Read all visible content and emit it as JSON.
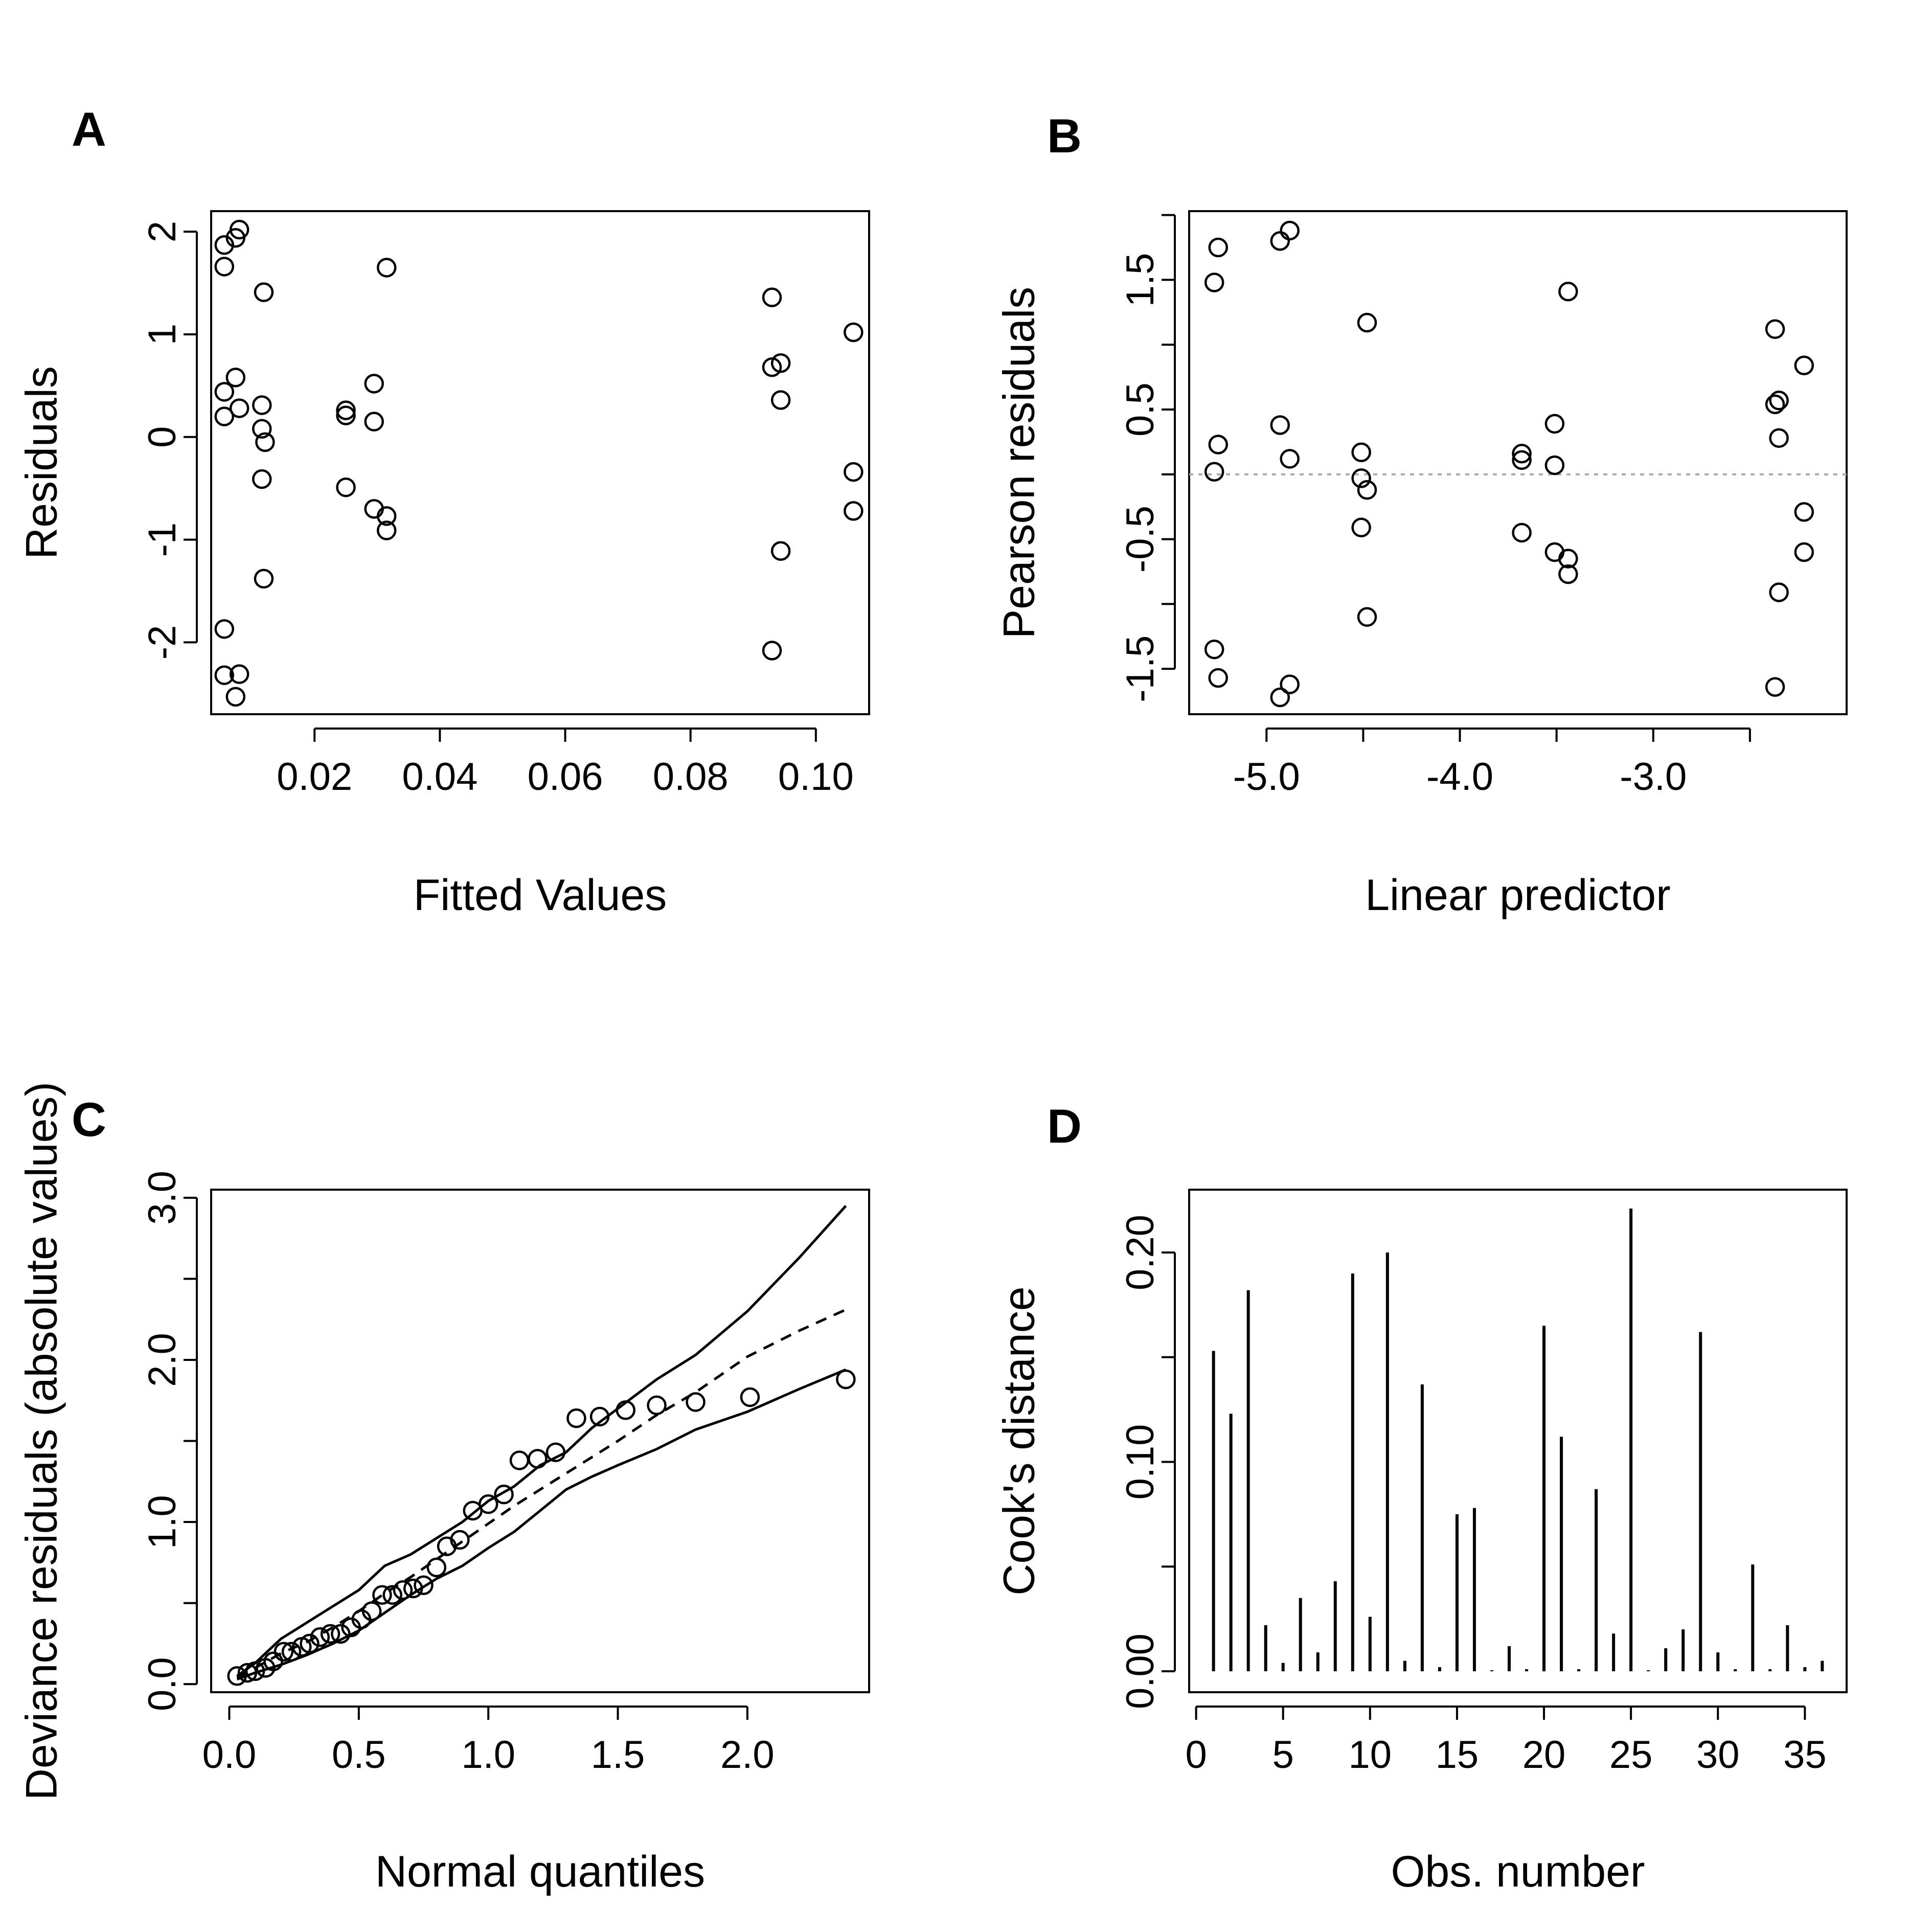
{
  "chart_data": [
    {
      "panel": "A",
      "type": "scatter",
      "xlabel": "Fitted Values",
      "ylabel": "Residuals",
      "xlim": [
        0.0035,
        0.1085
      ],
      "ylim": [
        -2.7,
        2.2
      ],
      "xticks": [
        0.02,
        0.04,
        0.06,
        0.08,
        0.1
      ],
      "xtick_labels": [
        "0.02",
        "0.04",
        "0.06",
        "0.08",
        "0.10"
      ],
      "yticks": [
        -2,
        -1,
        0,
        1,
        2
      ],
      "ytick_labels": [
        "-2",
        "-1",
        "0",
        "1",
        "2"
      ],
      "points": [
        [
          0.0056,
          1.87
        ],
        [
          0.0056,
          1.66
        ],
        [
          0.0056,
          0.44
        ],
        [
          0.0056,
          0.2
        ],
        [
          0.0056,
          -1.87
        ],
        [
          0.0056,
          -2.32
        ],
        [
          0.0074,
          1.94
        ],
        [
          0.008,
          2.02
        ],
        [
          0.0074,
          0.58
        ],
        [
          0.008,
          0.28
        ],
        [
          0.008,
          -2.31
        ],
        [
          0.0074,
          -2.53
        ],
        [
          0.0119,
          1.41
        ],
        [
          0.0116,
          0.31
        ],
        [
          0.0116,
          0.08
        ],
        [
          0.0121,
          -0.05
        ],
        [
          0.0116,
          -0.41
        ],
        [
          0.0119,
          -1.38
        ],
        [
          0.025,
          0.26
        ],
        [
          0.025,
          0.21
        ],
        [
          0.025,
          -0.49
        ],
        [
          0.0315,
          1.65
        ],
        [
          0.0295,
          0.52
        ],
        [
          0.0295,
          0.15
        ],
        [
          0.0295,
          -0.7
        ],
        [
          0.0315,
          -0.77
        ],
        [
          0.0315,
          -0.91
        ],
        [
          0.093,
          1.36
        ],
        [
          0.093,
          0.68
        ],
        [
          0.0944,
          0.72
        ],
        [
          0.0944,
          0.36
        ],
        [
          0.0944,
          -1.11
        ],
        [
          0.093,
          -2.08
        ],
        [
          0.106,
          1.02
        ],
        [
          0.106,
          -0.34
        ],
        [
          0.106,
          -0.72
        ]
      ]
    },
    {
      "panel": "B",
      "type": "scatter",
      "xlabel": "Linear predictor",
      "ylabel": "Pearson residuals",
      "xlim": [
        -5.4,
        -2.0
      ],
      "ylim": [
        -1.85,
        2.03
      ],
      "xticks": [
        -5.0,
        -4.5,
        -4.0,
        -3.5,
        -3.0,
        -2.5
      ],
      "xtick_labels": [
        "-5.0",
        "",
        "-4.0",
        "",
        "-3.0",
        ""
      ],
      "yticks": [
        -1.5,
        -1.0,
        -0.5,
        0.0,
        0.5,
        1.0,
        1.5,
        2.0
      ],
      "ytick_labels": [
        "-1.5",
        "",
        "-0.5",
        "",
        "0.5",
        "",
        "1.5",
        ""
      ],
      "reference_line": 0,
      "points": [
        [
          -5.25,
          1.75
        ],
        [
          -5.27,
          1.48
        ],
        [
          -5.25,
          0.23
        ],
        [
          -5.27,
          0.02
        ],
        [
          -5.27,
          -1.35
        ],
        [
          -5.25,
          -1.57
        ],
        [
          -4.93,
          1.8
        ],
        [
          -4.93,
          0.38
        ],
        [
          -4.88,
          1.88
        ],
        [
          -4.88,
          0.12
        ],
        [
          -4.93,
          -1.72
        ],
        [
          -4.88,
          -1.62
        ],
        [
          -4.48,
          1.17
        ],
        [
          -4.51,
          0.17
        ],
        [
          -4.51,
          -0.03
        ],
        [
          -4.48,
          -0.12
        ],
        [
          -4.51,
          -0.41
        ],
        [
          -4.48,
          -1.1
        ],
        [
          -3.68,
          0.16
        ],
        [
          -3.68,
          0.11
        ],
        [
          -3.68,
          -0.45
        ],
        [
          -3.44,
          1.41
        ],
        [
          -3.51,
          0.39
        ],
        [
          -3.51,
          0.07
        ],
        [
          -3.51,
          -0.6
        ],
        [
          -3.44,
          -0.65
        ],
        [
          -3.44,
          -0.77
        ],
        [
          -2.37,
          1.12
        ],
        [
          -2.37,
          0.54
        ],
        [
          -2.35,
          0.57
        ],
        [
          -2.35,
          0.28
        ],
        [
          -2.35,
          -0.91
        ],
        [
          -2.37,
          -1.64
        ],
        [
          -2.22,
          0.84
        ],
        [
          -2.22,
          -0.29
        ],
        [
          -2.22,
          -0.6
        ]
      ]
    },
    {
      "panel": "C",
      "type": "line",
      "xlabel": "Normal quantiles",
      "ylabel": "Deviance residuals (absolute values)",
      "xlim": [
        -0.07,
        2.47
      ],
      "ylim": [
        -0.05,
        3.05
      ],
      "xticks": [
        0.0,
        0.5,
        1.0,
        1.5,
        2.0
      ],
      "xtick_labels": [
        "0.0",
        "0.5",
        "1.0",
        "1.5",
        "2.0"
      ],
      "yticks": [
        0.0,
        0.5,
        1.0,
        1.5,
        2.0,
        2.5,
        3.0
      ],
      "ytick_labels": [
        "0.0",
        "",
        "1.0",
        "",
        "2.0",
        "",
        "3.0"
      ],
      "points": [
        [
          0.03,
          0.05
        ],
        [
          0.07,
          0.07
        ],
        [
          0.1,
          0.08
        ],
        [
          0.14,
          0.1
        ],
        [
          0.17,
          0.14
        ],
        [
          0.21,
          0.2
        ],
        [
          0.24,
          0.2
        ],
        [
          0.28,
          0.23
        ],
        [
          0.31,
          0.25
        ],
        [
          0.35,
          0.29
        ],
        [
          0.39,
          0.31
        ],
        [
          0.43,
          0.31
        ],
        [
          0.47,
          0.35
        ],
        [
          0.51,
          0.4
        ],
        [
          0.55,
          0.45
        ],
        [
          0.59,
          0.55
        ],
        [
          0.63,
          0.55
        ],
        [
          0.67,
          0.58
        ],
        [
          0.71,
          0.59
        ],
        [
          0.75,
          0.61
        ],
        [
          0.8,
          0.72
        ],
        [
          0.84,
          0.85
        ],
        [
          0.89,
          0.89
        ],
        [
          0.94,
          1.07
        ],
        [
          1.0,
          1.11
        ],
        [
          1.06,
          1.17
        ],
        [
          1.12,
          1.38
        ],
        [
          1.19,
          1.39
        ],
        [
          1.26,
          1.43
        ],
        [
          1.34,
          1.64
        ],
        [
          1.43,
          1.65
        ],
        [
          1.53,
          1.69
        ],
        [
          1.65,
          1.72
        ],
        [
          1.8,
          1.74
        ],
        [
          2.01,
          1.77
        ],
        [
          2.38,
          1.88
        ]
      ],
      "series": [
        {
          "style": "solid",
          "x": [
            0.03,
            0.1,
            0.2,
            0.3,
            0.4,
            0.5,
            0.6,
            0.7,
            0.8,
            0.9,
            1.0,
            1.1,
            1.2,
            1.3,
            1.4,
            1.5,
            1.65,
            1.8,
            2.0,
            2.2,
            2.38
          ],
          "y": [
            0.05,
            0.13,
            0.28,
            0.38,
            0.48,
            0.58,
            0.73,
            0.8,
            0.9,
            1.0,
            1.13,
            1.22,
            1.35,
            1.43,
            1.58,
            1.7,
            1.88,
            2.03,
            2.3,
            2.63,
            2.95
          ]
        },
        {
          "style": "dashed",
          "x": [
            0.03,
            0.1,
            0.2,
            0.3,
            0.4,
            0.5,
            0.6,
            0.7,
            0.8,
            0.9,
            1.0,
            1.1,
            1.2,
            1.3,
            1.4,
            1.5,
            1.65,
            1.8,
            2.0,
            2.2,
            2.38
          ],
          "y": [
            0.04,
            0.1,
            0.19,
            0.26,
            0.35,
            0.45,
            0.56,
            0.66,
            0.77,
            0.88,
            0.99,
            1.1,
            1.2,
            1.3,
            1.4,
            1.5,
            1.66,
            1.8,
            2.02,
            2.18,
            2.31
          ]
        },
        {
          "style": "solid",
          "x": [
            0.03,
            0.1,
            0.2,
            0.3,
            0.4,
            0.5,
            0.6,
            0.7,
            0.8,
            0.9,
            1.0,
            1.1,
            1.2,
            1.3,
            1.4,
            1.5,
            1.65,
            1.8,
            2.0,
            2.2,
            2.38
          ],
          "y": [
            0.03,
            0.07,
            0.12,
            0.18,
            0.25,
            0.33,
            0.44,
            0.55,
            0.65,
            0.73,
            0.84,
            0.94,
            1.07,
            1.2,
            1.28,
            1.35,
            1.45,
            1.57,
            1.68,
            1.82,
            1.94
          ]
        }
      ]
    },
    {
      "panel": "D",
      "type": "bar",
      "xlabel": "Obs. number",
      "ylabel": "Cook's distance",
      "xlim": [
        -0.4,
        37.4
      ],
      "ylim": [
        -0.01,
        0.23
      ],
      "xticks": [
        0,
        5,
        10,
        15,
        20,
        25,
        30,
        35
      ],
      "xtick_labels": [
        "0",
        "5",
        "10",
        "15",
        "20",
        "25",
        "30",
        "35"
      ],
      "yticks": [
        0.0,
        0.05,
        0.1,
        0.15,
        0.2
      ],
      "ytick_labels": [
        "0.00",
        "",
        "0.10",
        "",
        "0.20"
      ],
      "categories": [
        1,
        2,
        3,
        4,
        5,
        6,
        7,
        8,
        9,
        10,
        11,
        12,
        13,
        14,
        15,
        16,
        17,
        18,
        19,
        20,
        21,
        22,
        23,
        24,
        25,
        26,
        27,
        28,
        29,
        30,
        31,
        32,
        33,
        34,
        35,
        36
      ],
      "values": [
        0.153,
        0.123,
        0.182,
        0.022,
        0.004,
        0.035,
        0.009,
        0.043,
        0.19,
        0.026,
        0.2,
        0.005,
        0.137,
        0.002,
        0.075,
        0.078,
        0.0,
        0.012,
        0.001,
        0.165,
        0.112,
        0.001,
        0.087,
        0.018,
        0.221,
        0.0,
        0.011,
        0.02,
        0.162,
        0.009,
        0.001,
        0.051,
        0.001,
        0.022,
        0.002,
        0.005
      ]
    }
  ]
}
